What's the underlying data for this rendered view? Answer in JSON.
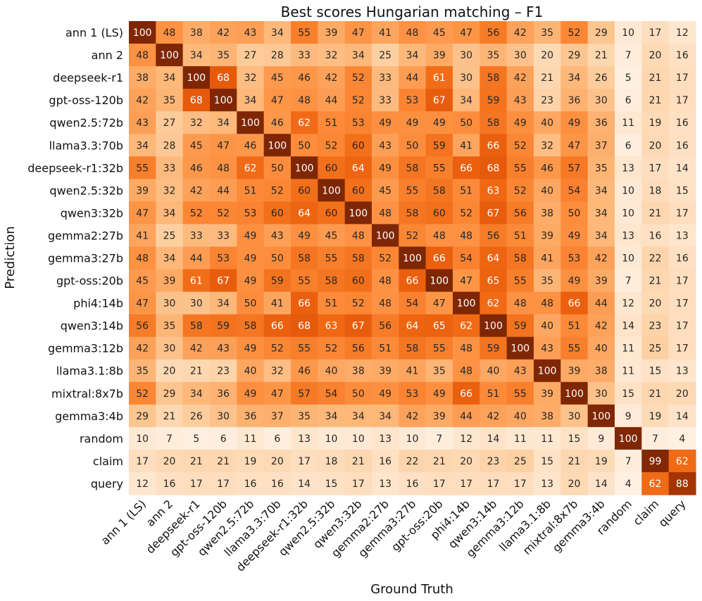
{
  "chart_data": {
    "type": "heatmap",
    "title": "Best scores Hungarian matching – F1",
    "xlabel": "Ground Truth",
    "ylabel": "Prediction",
    "colormap": "Oranges",
    "value_range": [
      0,
      100
    ],
    "x_categories": [
      "ann 1 (LS)",
      "ann 2",
      "deepseek-r1",
      "gpt-oss-120b",
      "qwen2.5:72b",
      "llama3.3:70b",
      "deepseek-r1:32b",
      "qwen2.5:32b",
      "qwen3:32b",
      "gemma2:27b",
      "gemma3:27b",
      "gpt-oss:20b",
      "phi4:14b",
      "qwen3:14b",
      "gemma3:12b",
      "llama3.1:8b",
      "mixtral:8x7b",
      "gemma3:4b",
      "random",
      "claim",
      "query"
    ],
    "y_categories": [
      "ann 1 (LS)",
      "ann 2",
      "deepseek-r1",
      "gpt-oss-120b",
      "qwen2.5:72b",
      "llama3.3:70b",
      "deepseek-r1:32b",
      "qwen2.5:32b",
      "qwen3:32b",
      "gemma2:27b",
      "gemma3:27b",
      "gpt-oss:20b",
      "phi4:14b",
      "qwen3:14b",
      "gemma3:12b",
      "llama3.1:8b",
      "mixtral:8x7b",
      "gemma3:4b",
      "random",
      "claim",
      "query"
    ],
    "values": [
      [
        100,
        48,
        38,
        42,
        43,
        34,
        55,
        39,
        47,
        41,
        48,
        45,
        47,
        56,
        42,
        35,
        52,
        29,
        10,
        17,
        12
      ],
      [
        48,
        100,
        34,
        35,
        27,
        28,
        33,
        32,
        34,
        25,
        34,
        39,
        30,
        35,
        30,
        20,
        29,
        21,
        7,
        20,
        16
      ],
      [
        38,
        34,
        100,
        68,
        32,
        45,
        46,
        42,
        52,
        33,
        44,
        61,
        30,
        58,
        42,
        21,
        34,
        26,
        5,
        21,
        17
      ],
      [
        42,
        35,
        68,
        100,
        34,
        47,
        48,
        44,
        52,
        33,
        53,
        67,
        34,
        59,
        43,
        23,
        36,
        30,
        6,
        21,
        17
      ],
      [
        43,
        27,
        32,
        34,
        100,
        46,
        62,
        51,
        53,
        49,
        49,
        49,
        50,
        58,
        49,
        40,
        49,
        36,
        11,
        19,
        16
      ],
      [
        34,
        28,
        45,
        47,
        46,
        100,
        50,
        52,
        60,
        43,
        50,
        59,
        41,
        66,
        52,
        32,
        47,
        37,
        6,
        20,
        16
      ],
      [
        55,
        33,
        46,
        48,
        62,
        50,
        100,
        60,
        64,
        49,
        58,
        55,
        66,
        68,
        55,
        46,
        57,
        35,
        13,
        17,
        14
      ],
      [
        39,
        32,
        42,
        44,
        51,
        52,
        60,
        100,
        60,
        45,
        55,
        58,
        51,
        63,
        52,
        40,
        54,
        34,
        10,
        18,
        15
      ],
      [
        47,
        34,
        52,
        52,
        53,
        60,
        64,
        60,
        100,
        48,
        58,
        60,
        52,
        67,
        56,
        38,
        50,
        34,
        10,
        21,
        17
      ],
      [
        41,
        25,
        33,
        33,
        49,
        43,
        49,
        45,
        48,
        100,
        52,
        48,
        48,
        56,
        51,
        39,
        49,
        34,
        13,
        16,
        13
      ],
      [
        48,
        34,
        44,
        53,
        49,
        50,
        58,
        55,
        58,
        52,
        100,
        66,
        54,
        64,
        58,
        41,
        53,
        42,
        10,
        22,
        16
      ],
      [
        45,
        39,
        61,
        67,
        49,
        59,
        55,
        58,
        60,
        48,
        66,
        100,
        47,
        65,
        55,
        35,
        49,
        39,
        7,
        21,
        17
      ],
      [
        47,
        30,
        30,
        34,
        50,
        41,
        66,
        51,
        52,
        48,
        54,
        47,
        100,
        62,
        48,
        48,
        66,
        44,
        12,
        20,
        17
      ],
      [
        56,
        35,
        58,
        59,
        58,
        66,
        68,
        63,
        67,
        56,
        64,
        65,
        62,
        100,
        59,
        40,
        51,
        42,
        14,
        23,
        17
      ],
      [
        42,
        30,
        42,
        43,
        49,
        52,
        55,
        52,
        56,
        51,
        58,
        55,
        48,
        59,
        100,
        43,
        55,
        40,
        11,
        25,
        17
      ],
      [
        35,
        20,
        21,
        23,
        40,
        32,
        46,
        40,
        38,
        39,
        41,
        35,
        48,
        40,
        43,
        100,
        39,
        38,
        11,
        15,
        13
      ],
      [
        52,
        29,
        34,
        36,
        49,
        47,
        57,
        54,
        50,
        49,
        53,
        49,
        66,
        51,
        55,
        39,
        100,
        30,
        15,
        21,
        20
      ],
      [
        29,
        21,
        26,
        30,
        36,
        37,
        35,
        34,
        34,
        34,
        42,
        39,
        44,
        42,
        40,
        38,
        30,
        100,
        9,
        19,
        14
      ],
      [
        10,
        7,
        5,
        6,
        11,
        6,
        13,
        10,
        10,
        13,
        10,
        7,
        12,
        14,
        11,
        11,
        15,
        9,
        100,
        7,
        4
      ],
      [
        17,
        20,
        21,
        21,
        19,
        20,
        17,
        18,
        21,
        16,
        22,
        21,
        20,
        23,
        25,
        15,
        21,
        19,
        7,
        99,
        62
      ],
      [
        12,
        16,
        17,
        17,
        16,
        16,
        14,
        15,
        17,
        13,
        16,
        17,
        17,
        17,
        17,
        13,
        20,
        14,
        4,
        62,
        88
      ]
    ]
  }
}
